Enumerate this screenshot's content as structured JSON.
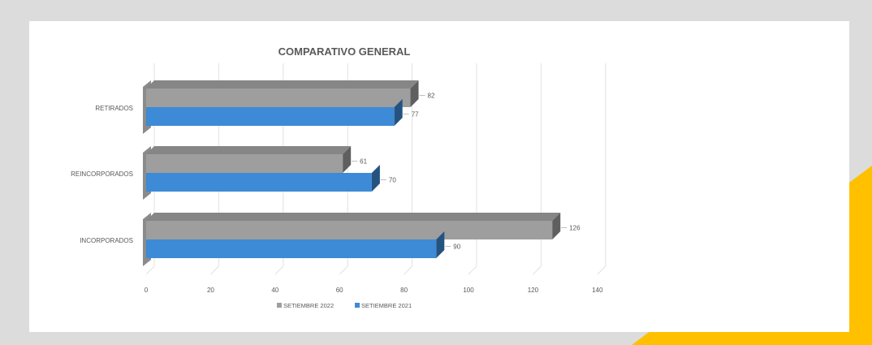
{
  "colors": {
    "frame": "#dcdcdc",
    "accent_triangle": "#ffc000",
    "series_2022": "#9e9e9e",
    "series_2021": "#3d8ad6"
  },
  "chart_data": {
    "type": "bar",
    "orientation": "horizontal",
    "style": "3d-clustered",
    "title": "COMPARATIVO GENERAL",
    "categories": [
      "RETIRADOS",
      "REINCORPORADOS",
      "INCORPORADOS"
    ],
    "series": [
      {
        "name": "SETIEMBRE 2022",
        "values": [
          82,
          61,
          126
        ]
      },
      {
        "name": "SETIEMBRE 2021",
        "values": [
          77,
          70,
          90
        ]
      }
    ],
    "xlim": [
      0,
      140
    ],
    "xticks": [
      0,
      20,
      40,
      60,
      80,
      100,
      120,
      140
    ],
    "grid": true,
    "data_labels": true,
    "legend_position": "bottom"
  }
}
